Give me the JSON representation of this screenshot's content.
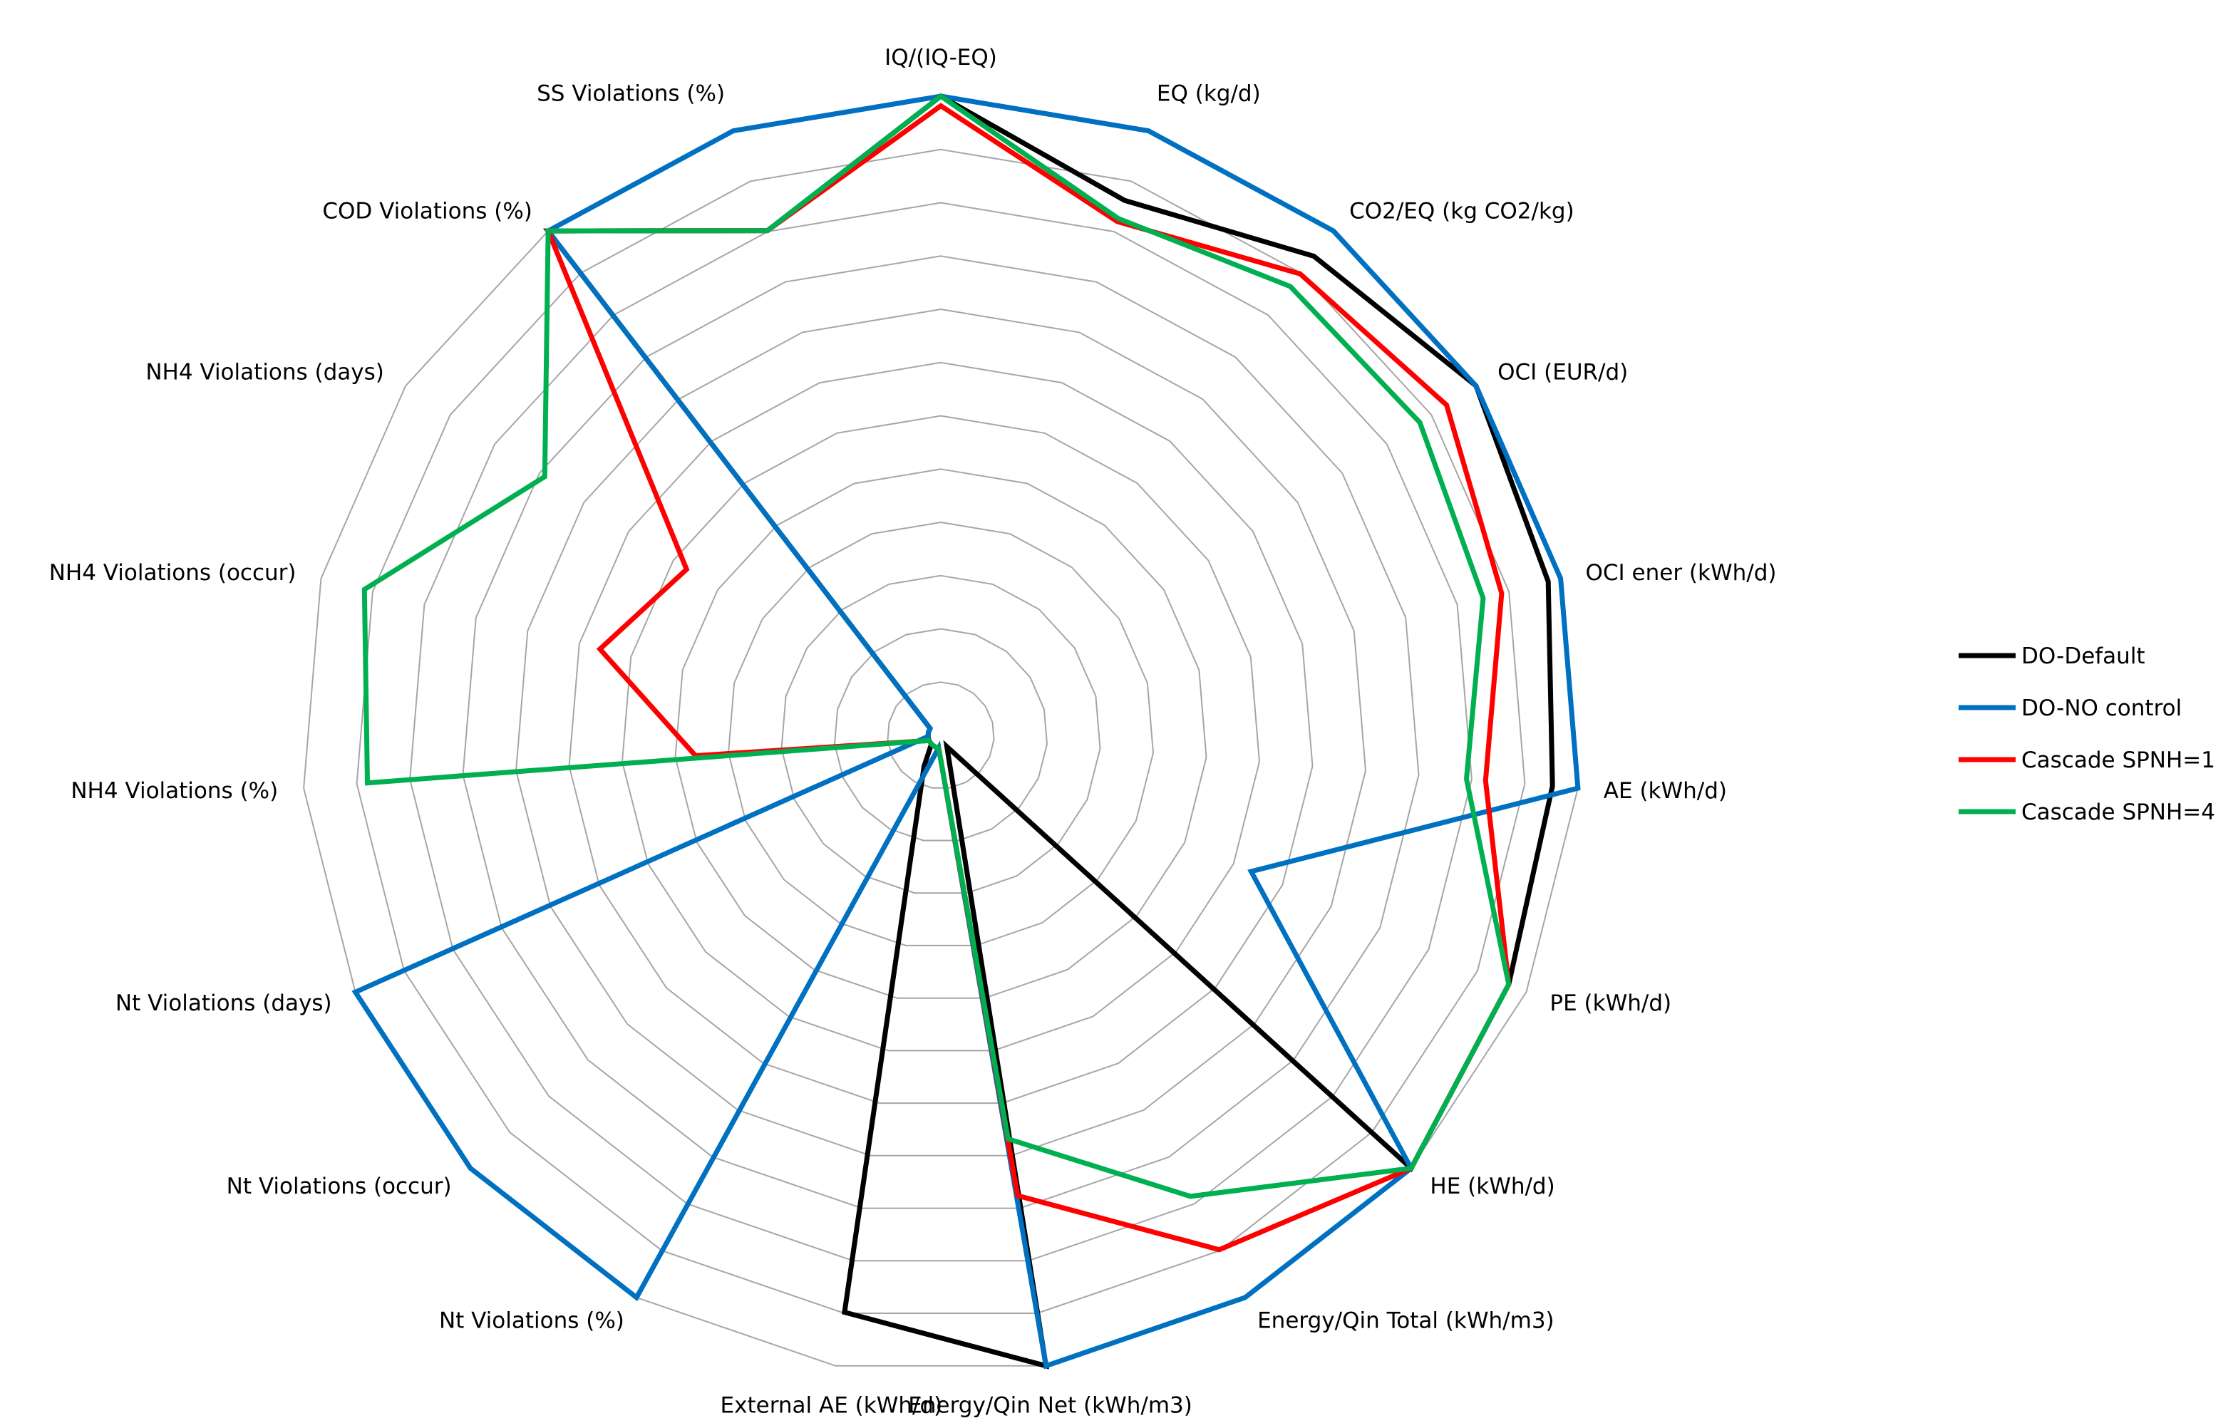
{
  "chart_data": {
    "type": "radar",
    "title": "",
    "axes": [
      "IQ/(IQ-EQ)",
      "EQ (kg/d)",
      "CO2/EQ (kg CO2/kg)",
      "OCI (EUR/d)",
      "OCI ener (kWh/d)",
      "AE (kWh/d)",
      "PE (kWh/d)",
      "HE (kWh/d)",
      "Energy/Qin Total (kWh/m3)",
      "Energy/Qin Net (kWh/m3)",
      "External AE (kWh/d)",
      "Nt Violations (%)",
      "Nt Violations (occur)",
      "Nt Violations (days)",
      "NH4 Violations (%)",
      "NH4 Violations (occur)",
      "NH4 Violations (days)",
      "COD Violations (%)",
      "SS Violations (%)"
    ],
    "rlim": [
      0,
      1
    ],
    "ring_count": 12,
    "grid": true,
    "legend_position": "right",
    "series": [
      {
        "name": "DO-Default",
        "color": "#000000",
        "values": [
          1.0,
          0.885,
          0.95,
          1.0,
          0.98,
          0.96,
          0.97,
          1.0,
          0.02,
          1.0,
          0.915,
          0.055,
          0.02,
          0.02,
          0.02,
          0.02,
          0.02,
          1.0,
          0.835
        ]
      },
      {
        "name": "DO-NO control",
        "color": "#0070c0",
        "values": [
          1.0,
          1.0,
          1.0,
          1.0,
          1.0,
          1.0,
          0.53,
          1.0,
          1.0,
          1.0,
          0.02,
          1.0,
          1.0,
          1.0,
          0.02,
          0.02,
          0.02,
          1.0,
          1.0
        ]
      },
      {
        "name": "Cascade SPNH=1",
        "color": "#ff0000",
        "values": [
          0.985,
          0.85,
          0.915,
          0.945,
          0.905,
          0.855,
          0.97,
          1.0,
          0.915,
          0.73,
          0.02,
          0.02,
          0.02,
          0.02,
          0.385,
          0.55,
          0.475,
          1.0,
          0.835
        ]
      },
      {
        "name": "Cascade SPNH=4",
        "color": "#00b050",
        "values": [
          1.0,
          0.855,
          0.89,
          0.895,
          0.875,
          0.825,
          0.97,
          1.0,
          0.82,
          0.64,
          0.02,
          0.02,
          0.02,
          0.02,
          0.9,
          0.93,
          0.74,
          1.0,
          0.835
        ]
      }
    ]
  }
}
